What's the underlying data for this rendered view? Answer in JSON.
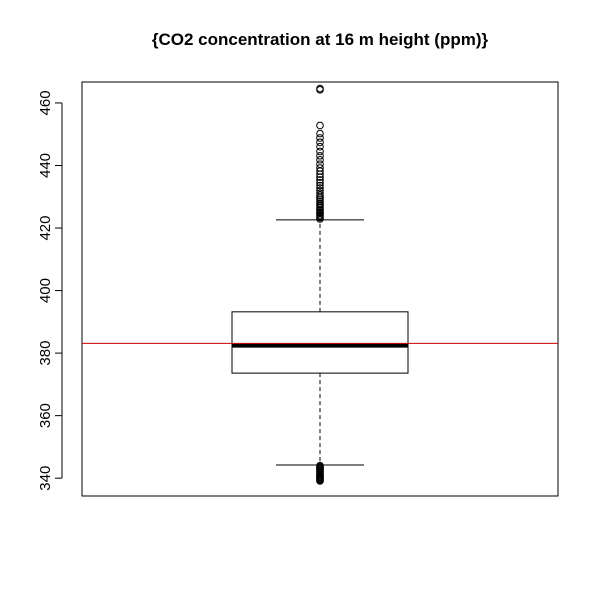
{
  "chart_data": {
    "type": "boxplot",
    "title": "{CO2 concentration at 16 m height (ppm)}",
    "xlabel": "",
    "ylabel": "",
    "ylim": [
      334.3,
      466.7
    ],
    "yticks": [
      340,
      360,
      380,
      400,
      420,
      440,
      460
    ],
    "box": {
      "whisker_low": 344.2,
      "q1": 373.6,
      "median": 382.4,
      "q3": 393.2,
      "whisker_high": 422.6
    },
    "reference_line": {
      "value": 383.1,
      "color": "#cc0000"
    },
    "outliers_high": [
      422.9,
      423.3,
      423.8,
      424.2,
      424.7,
      425.1,
      425.6,
      426.0,
      426.5,
      427.0,
      427.5,
      428.0,
      428.6,
      429.2,
      429.8,
      430.5,
      431.2,
      432.0,
      432.8,
      433.6,
      434.5,
      435.4,
      436.3,
      437.2,
      438.2,
      439.2,
      440.4,
      441.8,
      443.1,
      444.5,
      446.0,
      447.4,
      448.8,
      450.2,
      452.8,
      464.2,
      464.6
    ],
    "outliers_low": [
      344.0,
      343.7,
      343.4,
      343.1,
      342.8,
      342.5,
      342.2,
      341.9,
      341.6,
      341.3,
      341.0,
      340.7,
      340.4,
      340.1,
      339.8,
      339.5,
      339.3,
      339.1
    ]
  }
}
